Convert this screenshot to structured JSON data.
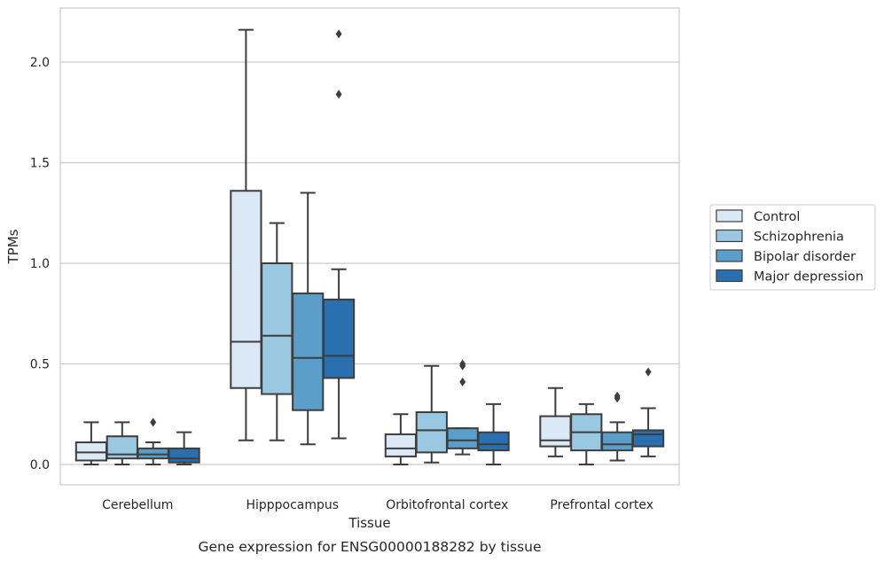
{
  "caption": "Gene expression for ENSG00000188282 by tissue",
  "chart_data": {
    "type": "box",
    "xlabel": "Tissue",
    "ylabel": "TPMs",
    "ylim": [
      -0.1,
      2.27
    ],
    "yticks": [
      0.0,
      0.5,
      1.0,
      1.5,
      2.0
    ],
    "ytick_labels": [
      "0.0",
      "0.5",
      "1.0",
      "1.5",
      "2.0"
    ],
    "grid": "horizontal",
    "legend_position": "right",
    "categories": [
      "Cerebellum",
      "Hipppocampus",
      "Orbitofrontal cortex",
      "Prefrontal cortex"
    ],
    "series": [
      {
        "name": "Control",
        "color": "#dbe9f6",
        "boxes": [
          {
            "whislo": 0.0,
            "q1": 0.02,
            "med": 0.06,
            "q3": 0.11,
            "whishi": 0.21,
            "fliers": []
          },
          {
            "whislo": 0.12,
            "q1": 0.38,
            "med": 0.61,
            "q3": 1.36,
            "whishi": 2.16,
            "fliers": []
          },
          {
            "whislo": 0.0,
            "q1": 0.04,
            "med": 0.08,
            "q3": 0.15,
            "whishi": 0.25,
            "fliers": []
          },
          {
            "whislo": 0.04,
            "q1": 0.09,
            "med": 0.12,
            "q3": 0.24,
            "whishi": 0.38,
            "fliers": []
          }
        ]
      },
      {
        "name": "Schizophrenia",
        "color": "#9ac8e0",
        "boxes": [
          {
            "whislo": 0.0,
            "q1": 0.03,
            "med": 0.05,
            "q3": 0.14,
            "whishi": 0.21,
            "fliers": []
          },
          {
            "whislo": 0.12,
            "q1": 0.35,
            "med": 0.64,
            "q3": 1.0,
            "whishi": 1.2,
            "fliers": []
          },
          {
            "whislo": 0.01,
            "q1": 0.06,
            "med": 0.17,
            "q3": 0.26,
            "whishi": 0.49,
            "fliers": []
          },
          {
            "whislo": 0.0,
            "q1": 0.07,
            "med": 0.16,
            "q3": 0.25,
            "whishi": 0.3,
            "fliers": []
          }
        ]
      },
      {
        "name": "Bipolar disorder",
        "color": "#5a9ec9",
        "boxes": [
          {
            "whislo": 0.0,
            "q1": 0.03,
            "med": 0.05,
            "q3": 0.08,
            "whishi": 0.11,
            "fliers": [
              0.21
            ]
          },
          {
            "whislo": 0.1,
            "q1": 0.27,
            "med": 0.53,
            "q3": 0.85,
            "whishi": 1.35,
            "fliers": []
          },
          {
            "whislo": 0.05,
            "q1": 0.08,
            "med": 0.12,
            "q3": 0.18,
            "whishi": 0.18,
            "fliers": [
              0.41,
              0.49,
              0.5
            ]
          },
          {
            "whislo": 0.02,
            "q1": 0.07,
            "med": 0.1,
            "q3": 0.16,
            "whishi": 0.21,
            "fliers": [
              0.33,
              0.34
            ]
          }
        ]
      },
      {
        "name": "Major depression",
        "color": "#2a6fb0",
        "boxes": [
          {
            "whislo": 0.0,
            "q1": 0.01,
            "med": 0.03,
            "q3": 0.08,
            "whishi": 0.16,
            "fliers": []
          },
          {
            "whislo": 0.13,
            "q1": 0.43,
            "med": 0.54,
            "q3": 0.82,
            "whishi": 0.97,
            "fliers": [
              1.84,
              2.14
            ]
          },
          {
            "whislo": 0.0,
            "q1": 0.07,
            "med": 0.1,
            "q3": 0.16,
            "whishi": 0.3,
            "fliers": []
          },
          {
            "whislo": 0.04,
            "q1": 0.09,
            "med": 0.15,
            "q3": 0.17,
            "whishi": 0.28,
            "fliers": [
              0.46
            ]
          }
        ]
      }
    ]
  }
}
